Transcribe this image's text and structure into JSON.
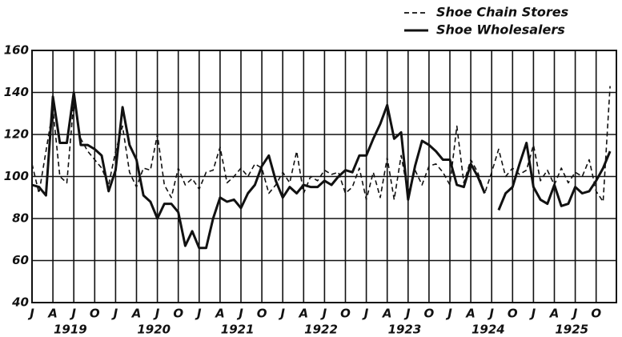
{
  "chart_data": {
    "type": "line",
    "categories": [
      "J",
      null,
      null,
      "A",
      null,
      null,
      "J",
      null,
      null,
      "O",
      null,
      null,
      "J",
      null,
      null,
      "A",
      null,
      null,
      "J",
      null,
      null,
      "O",
      null,
      null,
      "J",
      null,
      null,
      "A",
      null,
      null,
      "J",
      null,
      null,
      "O",
      null,
      null,
      "J",
      null,
      null,
      "A",
      null,
      null,
      "J",
      null,
      null,
      "O",
      null,
      null,
      "J",
      null,
      null,
      "A",
      null,
      null,
      "J",
      null,
      null,
      "O",
      null,
      null,
      "J",
      null,
      null,
      "A",
      null,
      null,
      "J",
      null,
      null,
      "O",
      null,
      null,
      "J",
      null,
      null,
      "A",
      null,
      null,
      "J",
      null,
      null,
      "O",
      null,
      null
    ],
    "years": [
      "1919",
      "1920",
      "1921",
      "1922",
      "1923",
      "1924",
      "1925"
    ],
    "series": [
      {
        "name": "Shoe Chain Stores",
        "color": "#111111",
        "style": "dashed",
        "values": [
          106,
          92,
          112,
          132,
          100,
          97,
          136,
          118,
          112,
          108,
          104,
          96,
          112,
          124,
          102,
          95,
          104,
          103,
          120,
          96,
          90,
          104,
          96,
          99,
          94,
          102,
          103,
          114,
          97,
          100,
          104,
          100,
          106,
          104,
          92,
          96,
          102,
          97,
          112,
          92,
          100,
          98,
          103,
          101,
          102,
          92,
          95,
          104,
          89,
          102,
          90,
          109,
          89,
          110,
          92,
          103,
          96,
          105,
          106,
          102,
          96,
          124,
          97,
          108,
          102,
          92,
          102,
          113,
          100,
          104,
          101,
          103,
          115,
          98,
          103,
          96,
          104,
          97,
          102,
          100,
          108,
          93,
          88,
          143
        ]
      },
      {
        "name": "Shoe Wholesalers",
        "color": "#111111",
        "style": "solid",
        "values": [
          96,
          95,
          91,
          138,
          116,
          116,
          140,
          115,
          115,
          113,
          110,
          93,
          103,
          133,
          115,
          108,
          91,
          88,
          80,
          87,
          87,
          83,
          67,
          74,
          66,
          66,
          80,
          90,
          88,
          89,
          85,
          92,
          96,
          105,
          110,
          98,
          90,
          95,
          92,
          96,
          95,
          95,
          98,
          96,
          100,
          103,
          102,
          110,
          110,
          118,
          125,
          134,
          118,
          121,
          89,
          105,
          117,
          115,
          112,
          108,
          108,
          96,
          95,
          106,
          100,
          92,
          null,
          84,
          92,
          95,
          106,
          116,
          95,
          89,
          87,
          96,
          86,
          87,
          95,
          92,
          93,
          98,
          104,
          112
        ]
      }
    ],
    "ylim": [
      40,
      160
    ],
    "yticks": [
      40,
      60,
      80,
      100,
      120,
      140,
      160
    ],
    "grid": true,
    "legend": "top-right"
  }
}
